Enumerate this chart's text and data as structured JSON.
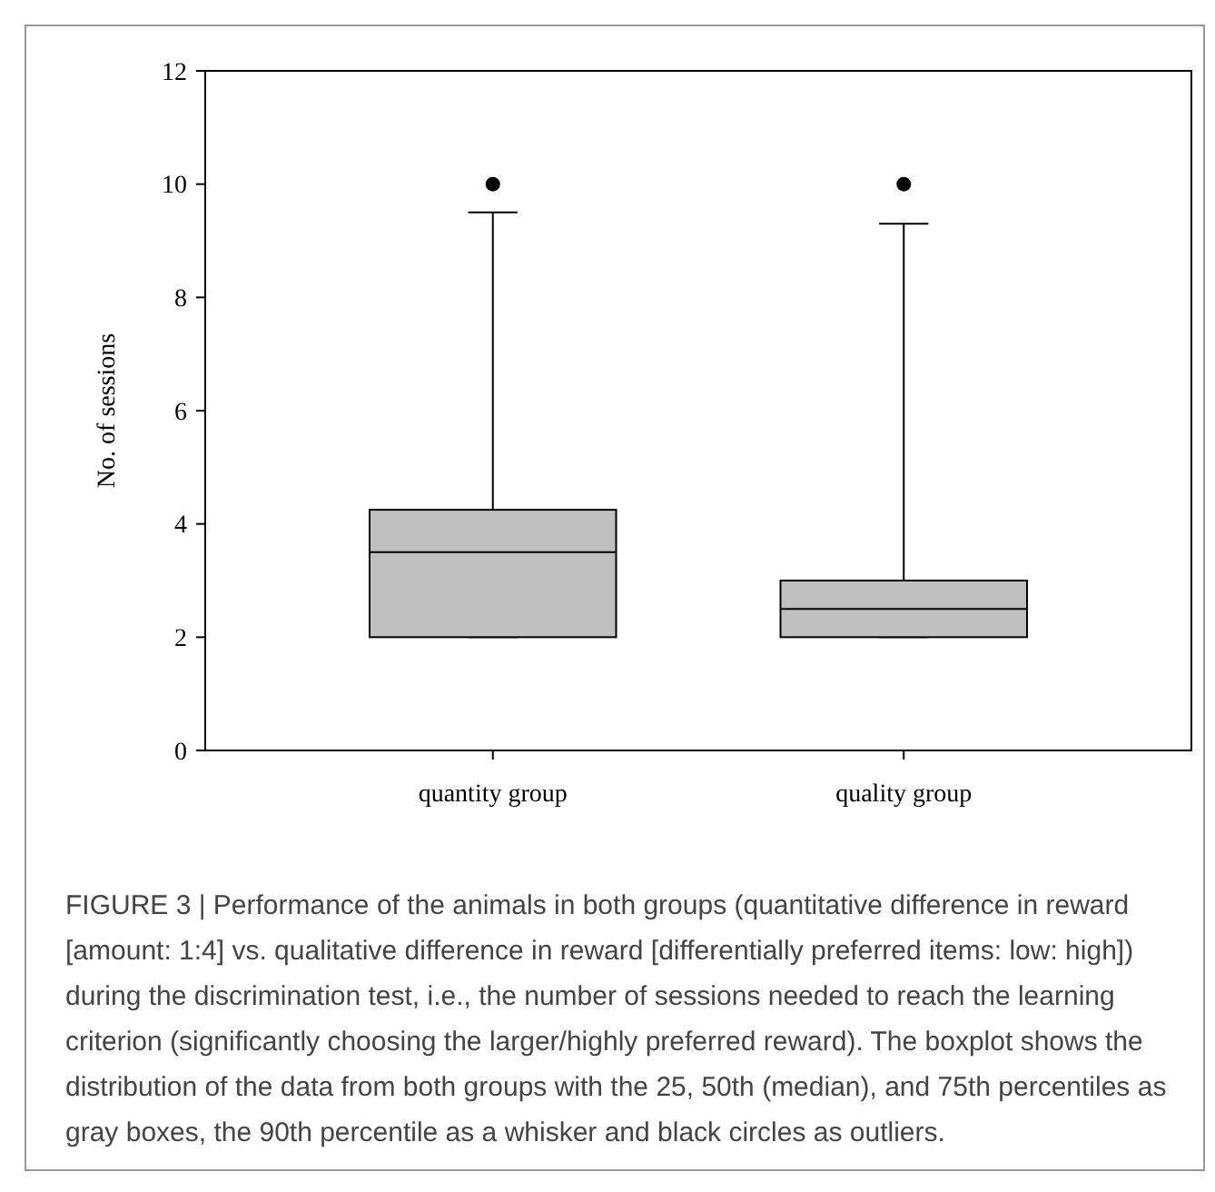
{
  "chart_data": {
    "type": "box",
    "ylabel": "No. of sessions",
    "categories": [
      "quantity group",
      "quality group"
    ],
    "boxes": [
      {
        "low": 2,
        "q1": 2,
        "median": 3.5,
        "q3": 4.25,
        "high": 9.5,
        "outliers": [
          10
        ]
      },
      {
        "low": 2,
        "q1": 2,
        "median": 2.5,
        "q3": 3,
        "high": 9.3,
        "outliers": [
          10
        ]
      }
    ],
    "color": "#c0c0c0",
    "ylim": [
      0,
      12
    ],
    "yticks": [
      0,
      2,
      4,
      6,
      8,
      10,
      12
    ],
    "grid": false,
    "annotations": [
      "FIGURE 3 | Performance of the animals in both groups (quantitative difference in reward [amount: 1:4] vs. qualitative difference in reward [differentially preferred items: low: high]) during the discrimination test, i.e., the number of sessions needed to reach the learning criterion (significantly choosing the larger/highly preferred reward). The boxplot shows the distribution of the data from both groups with the 25, 50th (median), and 75th percentiles as gray boxes, the 90th percentile as a whisker and black circles as outliers."
    ]
  }
}
